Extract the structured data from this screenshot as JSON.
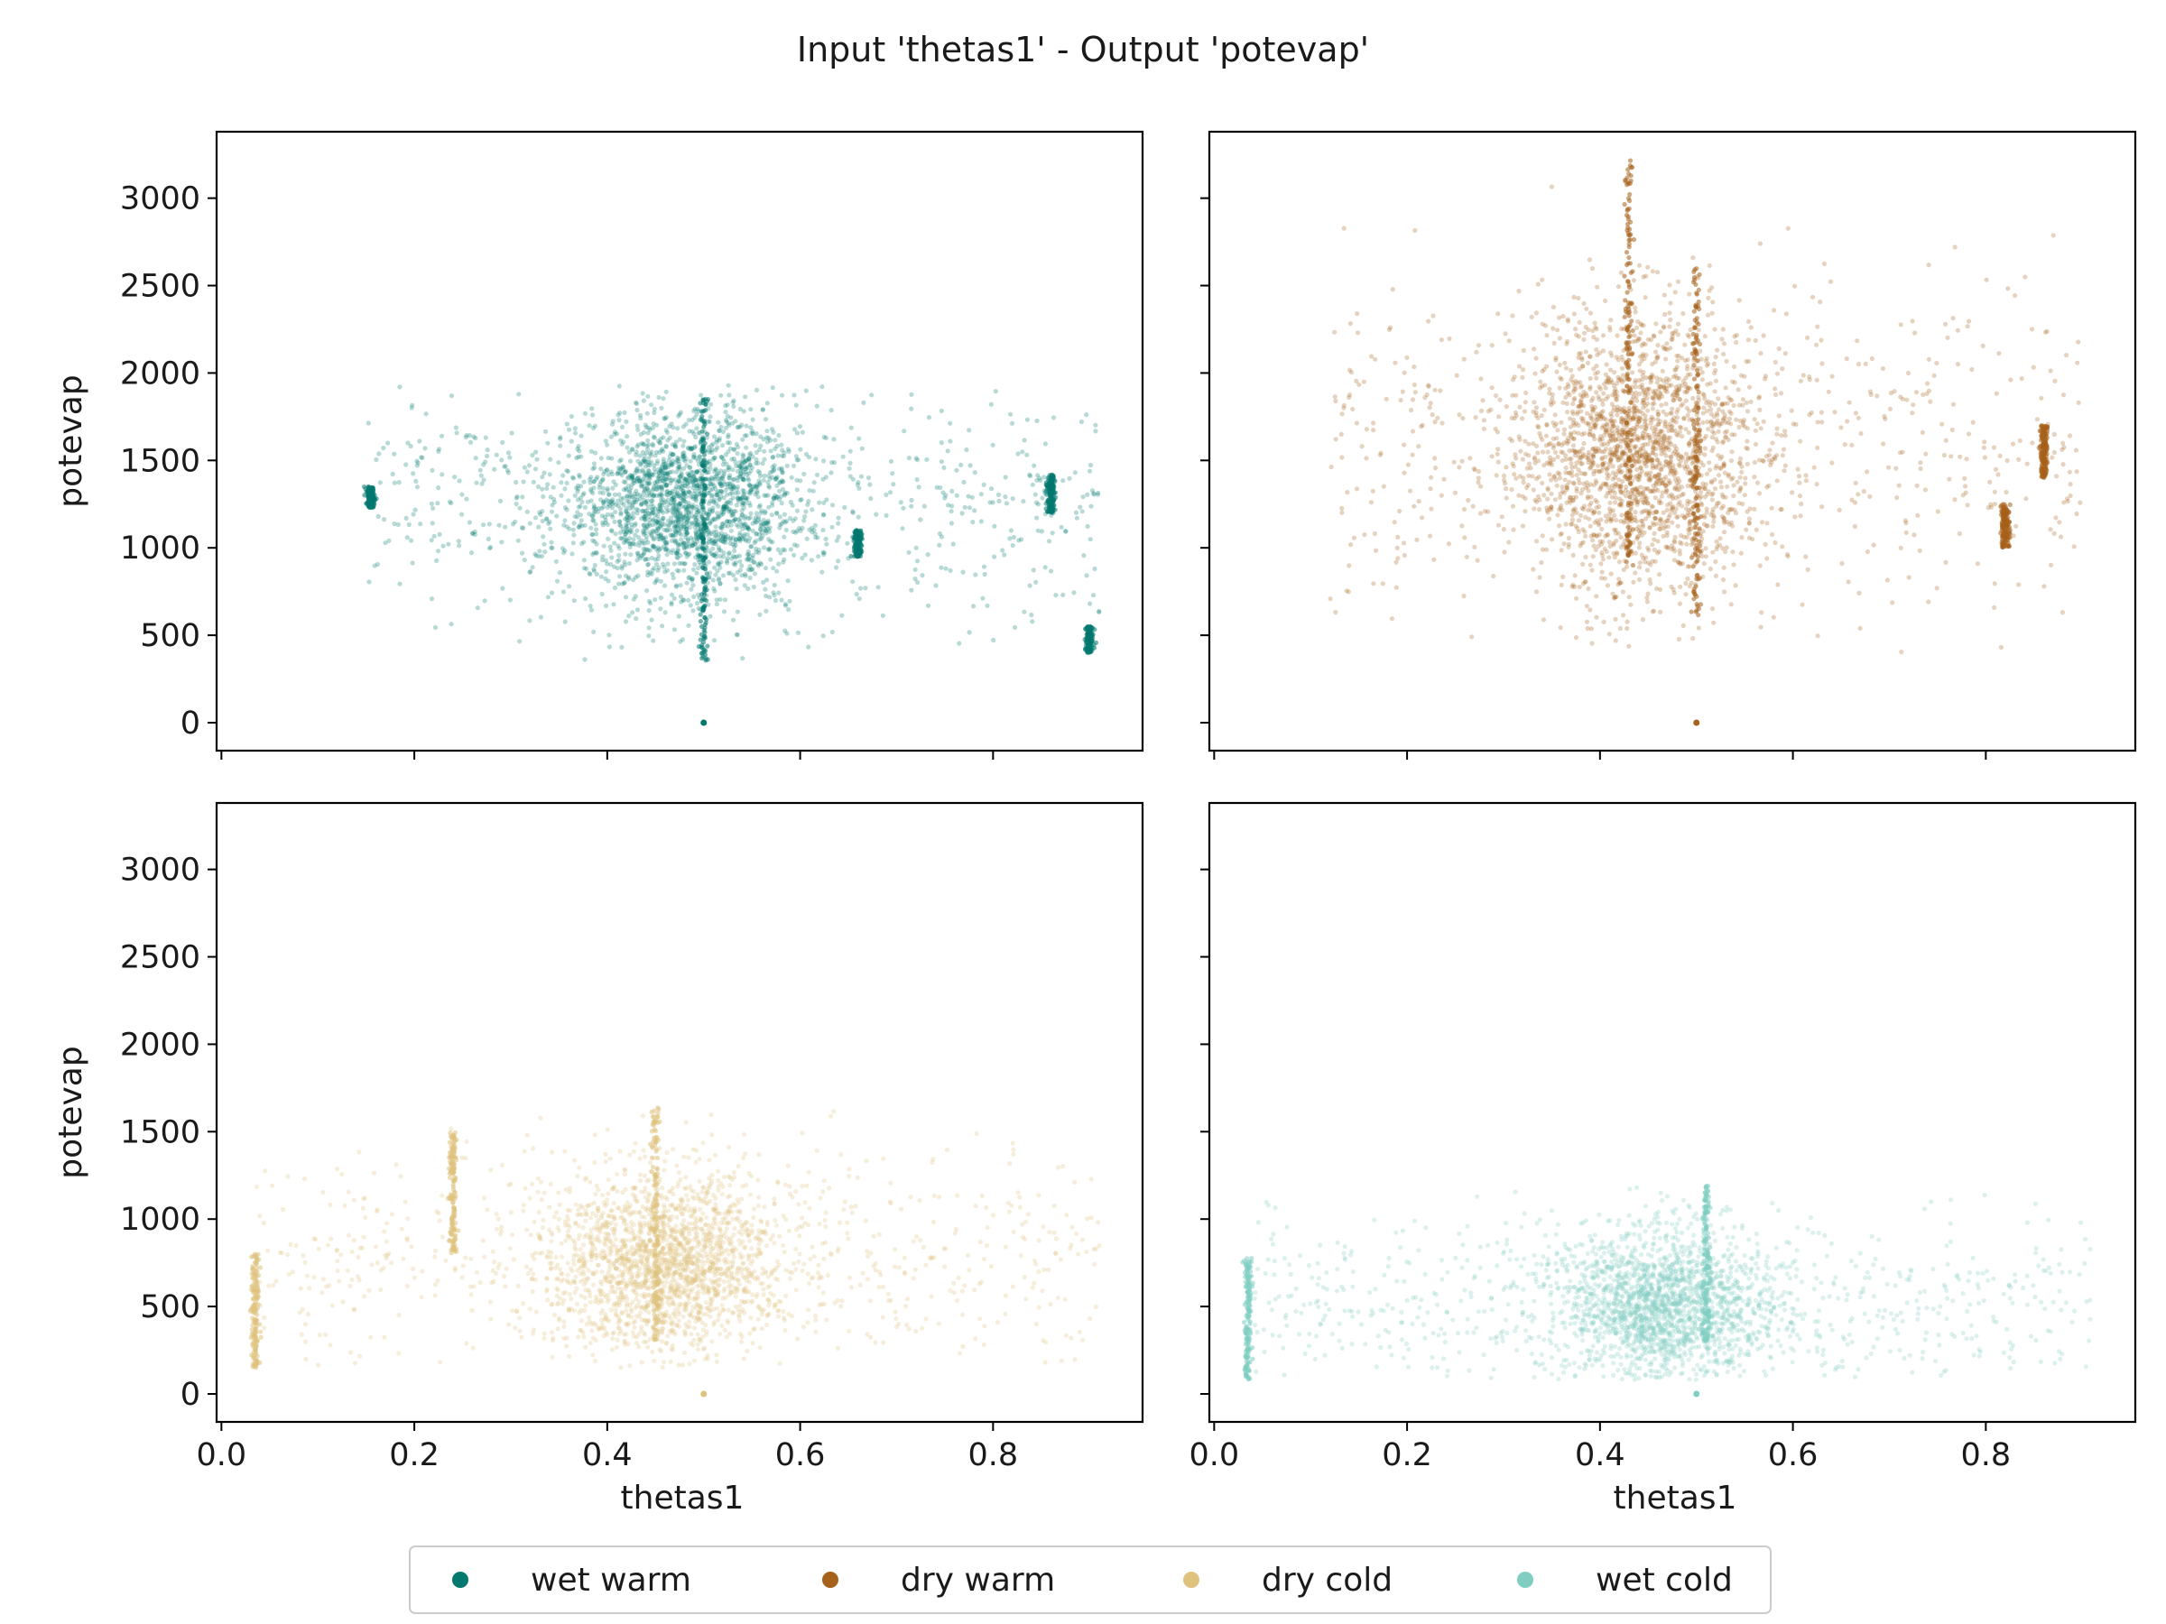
{
  "title": "Input 'thetas1' - Output 'potevap'",
  "chart_data": {
    "type": "scatter",
    "xlabel": "thetas1",
    "ylabel": "potevap",
    "xlim": [
      -0.005,
      0.955
    ],
    "ylim": [
      -160,
      3380
    ],
    "xticks": [
      "0.0",
      "0.2",
      "0.4",
      "0.6",
      "0.8"
    ],
    "xtick_values": [
      0.0,
      0.2,
      0.4,
      0.6,
      0.8
    ],
    "yticks": [
      "0",
      "500",
      "1000",
      "1500",
      "2000",
      "2500",
      "3000"
    ],
    "ytick_values": [
      0,
      500,
      1000,
      1500,
      2000,
      2500,
      3000
    ],
    "series": [
      {
        "name": "wet warm",
        "color": "#01796f",
        "panel": "top-left",
        "cluster": {
          "x_center": 0.48,
          "x_spread": 0.06,
          "y_center": 1250,
          "y_spread": 260,
          "x_min": 0.15,
          "x_max": 0.91,
          "y_min": 300,
          "y_max": 1930
        },
        "columns": [
          {
            "x": 0.5,
            "y_min": 350,
            "y_max": 1860
          },
          {
            "x": 0.155,
            "y_min": 1230,
            "y_max": 1350
          },
          {
            "x": 0.86,
            "y_min": 1200,
            "y_max": 1420
          },
          {
            "x": 0.9,
            "y_min": 400,
            "y_max": 550
          },
          {
            "x": 0.66,
            "y_min": 950,
            "y_max": 1100
          }
        ],
        "outlier_points": [
          {
            "x": 0.5,
            "y": 0
          }
        ]
      },
      {
        "name": "dry warm",
        "color": "#a6611a",
        "panel": "top-right",
        "cluster": {
          "x_center": 0.44,
          "x_spread": 0.06,
          "y_center": 1550,
          "y_spread": 380,
          "x_min": 0.12,
          "x_max": 0.9,
          "y_min": 400,
          "y_max": 3220
        },
        "columns": [
          {
            "x": 0.43,
            "y_min": 900,
            "y_max": 3220
          },
          {
            "x": 0.5,
            "y_min": 600,
            "y_max": 2600
          },
          {
            "x": 0.82,
            "y_min": 1000,
            "y_max": 1250
          },
          {
            "x": 0.86,
            "y_min": 1400,
            "y_max": 1700
          }
        ],
        "outlier_points": [
          {
            "x": 0.5,
            "y": 0
          }
        ]
      },
      {
        "name": "dry cold",
        "color": "#dfc27d",
        "panel": "bottom-left",
        "cluster": {
          "x_center": 0.46,
          "x_spread": 0.06,
          "y_center": 750,
          "y_spread": 260,
          "x_min": 0.035,
          "x_max": 0.91,
          "y_min": 150,
          "y_max": 1700
        },
        "columns": [
          {
            "x": 0.035,
            "y_min": 150,
            "y_max": 800
          },
          {
            "x": 0.24,
            "y_min": 800,
            "y_max": 1500
          },
          {
            "x": 0.45,
            "y_min": 300,
            "y_max": 1650
          }
        ],
        "outlier_points": [
          {
            "x": 0.5,
            "y": 0
          }
        ]
      },
      {
        "name": "wet cold",
        "color": "#80cdc1",
        "panel": "bottom-right",
        "cluster": {
          "x_center": 0.47,
          "x_spread": 0.06,
          "y_center": 500,
          "y_spread": 220,
          "x_min": 0.035,
          "x_max": 0.91,
          "y_min": 80,
          "y_max": 1200
        },
        "columns": [
          {
            "x": 0.035,
            "y_min": 80,
            "y_max": 800
          },
          {
            "x": 0.51,
            "y_min": 300,
            "y_max": 1200
          }
        ],
        "outlier_points": [
          {
            "x": 0.5,
            "y": 0
          }
        ]
      }
    ],
    "legend_position": "bottom-center"
  }
}
